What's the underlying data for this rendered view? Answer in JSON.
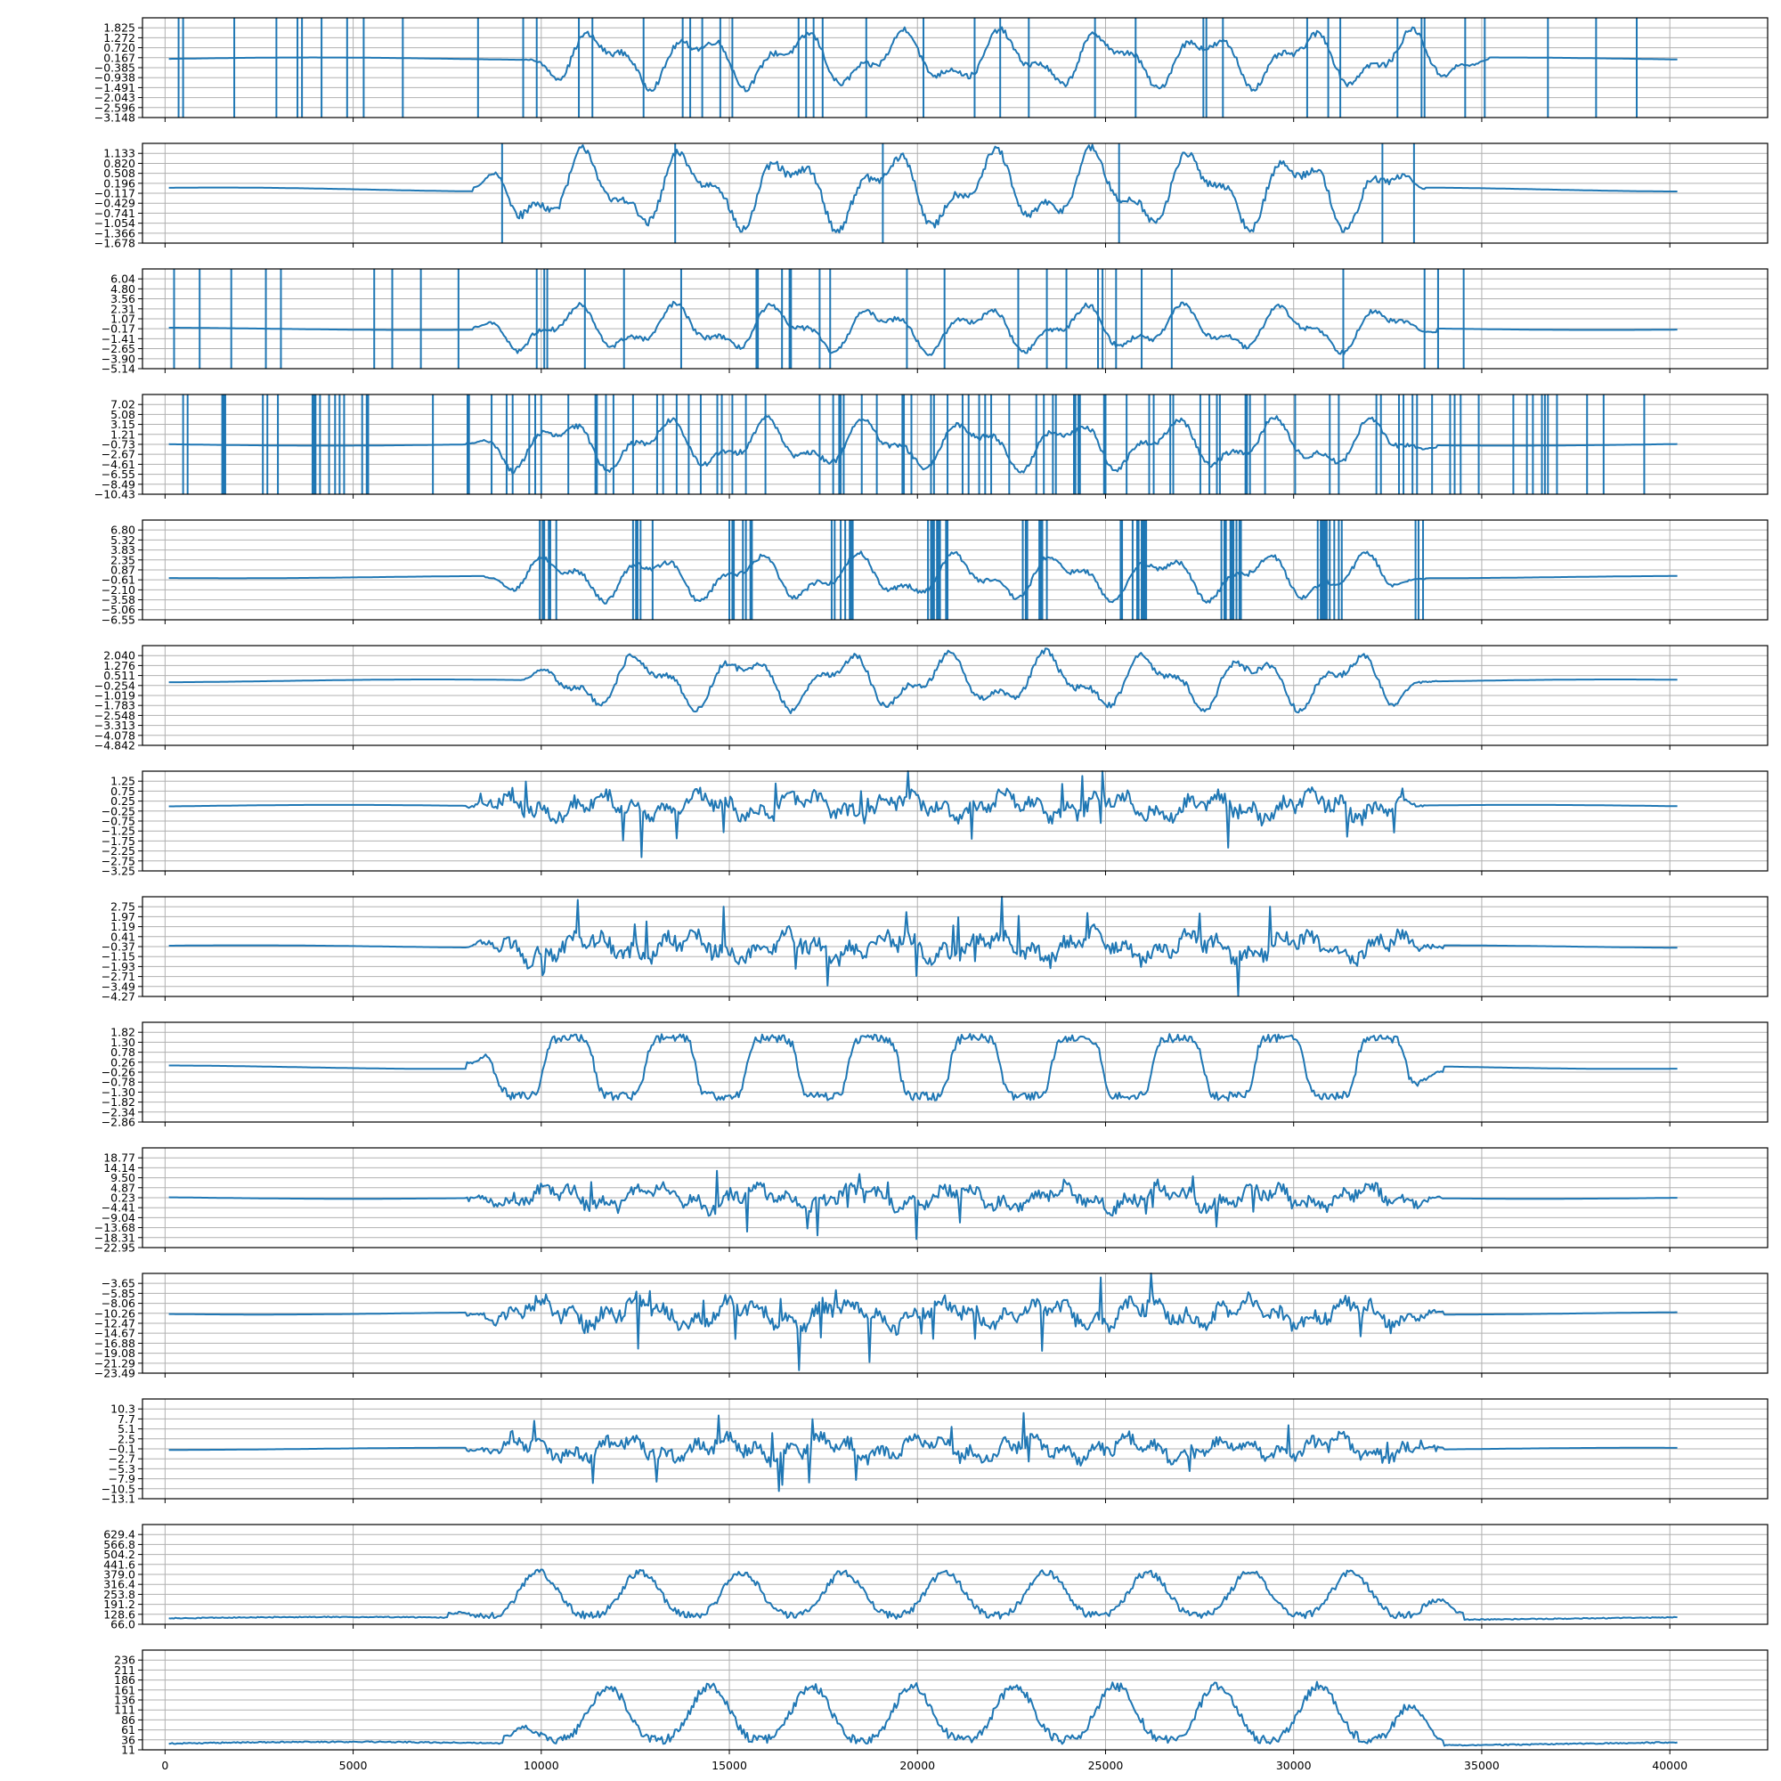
{
  "chart_data": [
    {
      "type": "line",
      "title": "",
      "xlabel": "",
      "ylabel": "",
      "xlim": [
        -600,
        42600
      ],
      "ylim": [
        -3.148,
        2.378
      ],
      "grid": true,
      "yticks": [
        "1.825",
        "1.272",
        "0.720",
        "0.167",
        "−0.385",
        "−0.938",
        "−1.491",
        "−2.043",
        "−2.596",
        "−3.148"
      ],
      "style": "oscillating",
      "amplitude": 1.6,
      "baseline": 0.1,
      "active_range": [
        9500,
        35200
      ],
      "vertical_markers": "dense"
    },
    {
      "type": "line",
      "title": "",
      "xlabel": "",
      "ylabel": "",
      "xlim": [
        -600,
        42600
      ],
      "ylim": [
        -1.678,
        1.446
      ],
      "grid": true,
      "yticks": [
        "1.133",
        "0.820",
        "0.508",
        "0.196",
        "−0.117",
        "−0.429",
        "−0.741",
        "−1.054",
        "−1.366",
        "−1.678"
      ],
      "style": "oscillating",
      "amplitude": 1.25,
      "baseline": 0.0,
      "active_range": [
        8200,
        33500
      ],
      "vertical_markers": "sparse"
    },
    {
      "type": "line",
      "title": "",
      "xlabel": "",
      "ylabel": "",
      "xlim": [
        -600,
        42600
      ],
      "ylim": [
        -5.14,
        7.28
      ],
      "grid": true,
      "yticks": [
        "6.04",
        "4.80",
        "3.56",
        "2.31",
        "1.07",
        "−0.17",
        "−1.41",
        "−2.65",
        "−3.90",
        "−5.14"
      ],
      "style": "oscillating",
      "amplitude": 3.0,
      "baseline": -0.17,
      "active_range": [
        8200,
        33800
      ],
      "vertical_markers": "dense"
    },
    {
      "type": "line",
      "title": "",
      "xlabel": "",
      "ylabel": "",
      "xlim": [
        -600,
        42600
      ],
      "ylim": [
        -10.43,
        8.96
      ],
      "grid": true,
      "yticks": [
        "7.02",
        "5.08",
        "3.15",
        "1.21",
        "−0.73",
        "−2.67",
        "−4.61",
        "−6.55",
        "−8.49",
        "−10.43"
      ],
      "style": "oscillating",
      "amplitude": 5.0,
      "baseline": -0.73,
      "active_range": [
        8000,
        33800
      ],
      "vertical_markers": "very_dense"
    },
    {
      "type": "line",
      "title": "",
      "xlabel": "",
      "ylabel": "",
      "xlim": [
        -600,
        42600
      ],
      "ylim": [
        -6.55,
        8.28
      ],
      "grid": true,
      "yticks": [
        "6.80",
        "5.32",
        "3.83",
        "2.35",
        "0.87",
        "−0.61",
        "−2.10",
        "−3.58",
        "−5.06",
        "−6.55"
      ],
      "style": "oscillating",
      "amplitude": 3.5,
      "baseline": -0.2,
      "active_range": [
        8500,
        33500
      ],
      "vertical_markers": "clustered"
    },
    {
      "type": "line",
      "title": "",
      "xlabel": "",
      "ylabel": "",
      "xlim": [
        -600,
        42600
      ],
      "ylim": [
        -4.842,
        2.805
      ],
      "grid": true,
      "yticks": [
        "2.040",
        "1.276",
        "0.511",
        "−0.254",
        "−1.019",
        "−1.783",
        "−2.548",
        "−3.313",
        "−4.078",
        "−4.842"
      ],
      "style": "oscillating",
      "amplitude": 2.2,
      "baseline": 0.1,
      "active_range": [
        9500,
        33800
      ],
      "vertical_markers": "none"
    },
    {
      "type": "line",
      "title": "",
      "xlabel": "",
      "ylabel": "",
      "xlim": [
        -600,
        42600
      ],
      "ylim": [
        -3.25,
        1.75
      ],
      "grid": true,
      "yticks": [
        "1.25",
        "0.75",
        "0.25",
        "−0.25",
        "−0.75",
        "−1.25",
        "−1.75",
        "−2.25",
        "−2.75",
        "−3.25"
      ],
      "style": "spiky",
      "amplitude": 1.2,
      "baseline": 0.0,
      "active_range": [
        8000,
        33500
      ],
      "vertical_markers": "none"
    },
    {
      "type": "line",
      "title": "",
      "xlabel": "",
      "ylabel": "",
      "xlim": [
        -600,
        42600
      ],
      "ylim": [
        -4.27,
        3.53
      ],
      "grid": true,
      "yticks": [
        "2.75",
        "1.97",
        "1.19",
        "0.41",
        "−0.37",
        "−1.15",
        "−1.93",
        "−2.71",
        "−3.49",
        "−4.27"
      ],
      "style": "spiky",
      "amplitude": 2.0,
      "baseline": -0.37,
      "active_range": [
        8000,
        34000
      ],
      "vertical_markers": "none"
    },
    {
      "type": "line",
      "title": "",
      "xlabel": "",
      "ylabel": "",
      "xlim": [
        -600,
        42600
      ],
      "ylim": [
        -2.86,
        2.34
      ],
      "grid": true,
      "yticks": [
        "1.82",
        "1.30",
        "0.78",
        "0.26",
        "−0.26",
        "−0.78",
        "−1.30",
        "−1.82",
        "−2.34",
        "−2.86"
      ],
      "style": "square",
      "amplitude": 1.8,
      "baseline": 0.0,
      "active_range": [
        8000,
        34000
      ],
      "vertical_markers": "none"
    },
    {
      "type": "line",
      "title": "",
      "xlabel": "",
      "ylabel": "",
      "xlim": [
        -600,
        42600
      ],
      "ylim": [
        -22.95,
        23.41
      ],
      "grid": true,
      "yticks": [
        "18.77",
        "14.14",
        "9.50",
        "4.87",
        "0.23",
        "−4.41",
        "−9.04",
        "−13.68",
        "−18.31",
        "−22.95"
      ],
      "style": "spiky",
      "amplitude": 10.0,
      "baseline": 0.23,
      "active_range": [
        8000,
        34000
      ],
      "vertical_markers": "none"
    },
    {
      "type": "line",
      "title": "",
      "xlabel": "",
      "ylabel": "",
      "xlim": [
        -600,
        42600
      ],
      "ylim": [
        -23.49,
        -1.45
      ],
      "grid": true,
      "yticks": [
        "−3.65",
        "−5.85",
        "−8.06",
        "−10.26",
        "−12.47",
        "−14.67",
        "−16.88",
        "−19.08",
        "−21.29",
        "−23.49"
      ],
      "style": "spiky",
      "amplitude": 5.5,
      "baseline": -10.26,
      "active_range": [
        8000,
        34000
      ],
      "vertical_markers": "none"
    },
    {
      "type": "line",
      "title": "",
      "xlabel": "",
      "ylabel": "",
      "xlim": [
        -600,
        42600
      ],
      "ylim": [
        -13.1,
        12.9
      ],
      "grid": true,
      "yticks": [
        "10.3",
        "7.7",
        "5.1",
        "2.5",
        "−0.1",
        "−2.7",
        "−5.3",
        "−7.9",
        "−10.5",
        "−13.1"
      ],
      "style": "spiky",
      "amplitude": 5.5,
      "baseline": -0.1,
      "active_range": [
        8000,
        34000
      ],
      "vertical_markers": "none"
    },
    {
      "type": "line",
      "title": "",
      "xlabel": "",
      "ylabel": "",
      "xlim": [
        -600,
        42600
      ],
      "ylim": [
        66.0,
        692.0
      ],
      "grid": true,
      "yticks": [
        "629.4",
        "566.8",
        "504.2",
        "441.6",
        "379.0",
        "316.4",
        "253.8",
        "191.2",
        "128.6",
        "66.0"
      ],
      "style": "envelope",
      "amplitude": 300,
      "baseline": 100,
      "active_range": [
        7500,
        34500
      ],
      "vertical_markers": "none"
    },
    {
      "type": "line",
      "title": "",
      "xlabel": "",
      "ylabel": "",
      "xlim": [
        -600,
        42600
      ],
      "ylim": [
        11,
        261
      ],
      "grid": true,
      "yticks": [
        "236",
        "211",
        "186",
        "161",
        "136",
        "111",
        "86",
        "61",
        "36",
        "11"
      ],
      "style": "envelope",
      "amplitude": 150,
      "baseline": 25,
      "active_range": [
        9000,
        34000
      ],
      "vertical_markers": "none"
    }
  ],
  "x_axis": {
    "ticks": [
      0,
      5000,
      10000,
      15000,
      20000,
      25000,
      30000,
      35000,
      40000
    ],
    "tick_labels": [
      "0",
      "5000",
      "10000",
      "15000",
      "20000",
      "25000",
      "30000",
      "35000",
      "40000"
    ]
  },
  "colors": {
    "line": "#1f77b4",
    "grid": "#b0b0b0",
    "frame": "#000000"
  }
}
